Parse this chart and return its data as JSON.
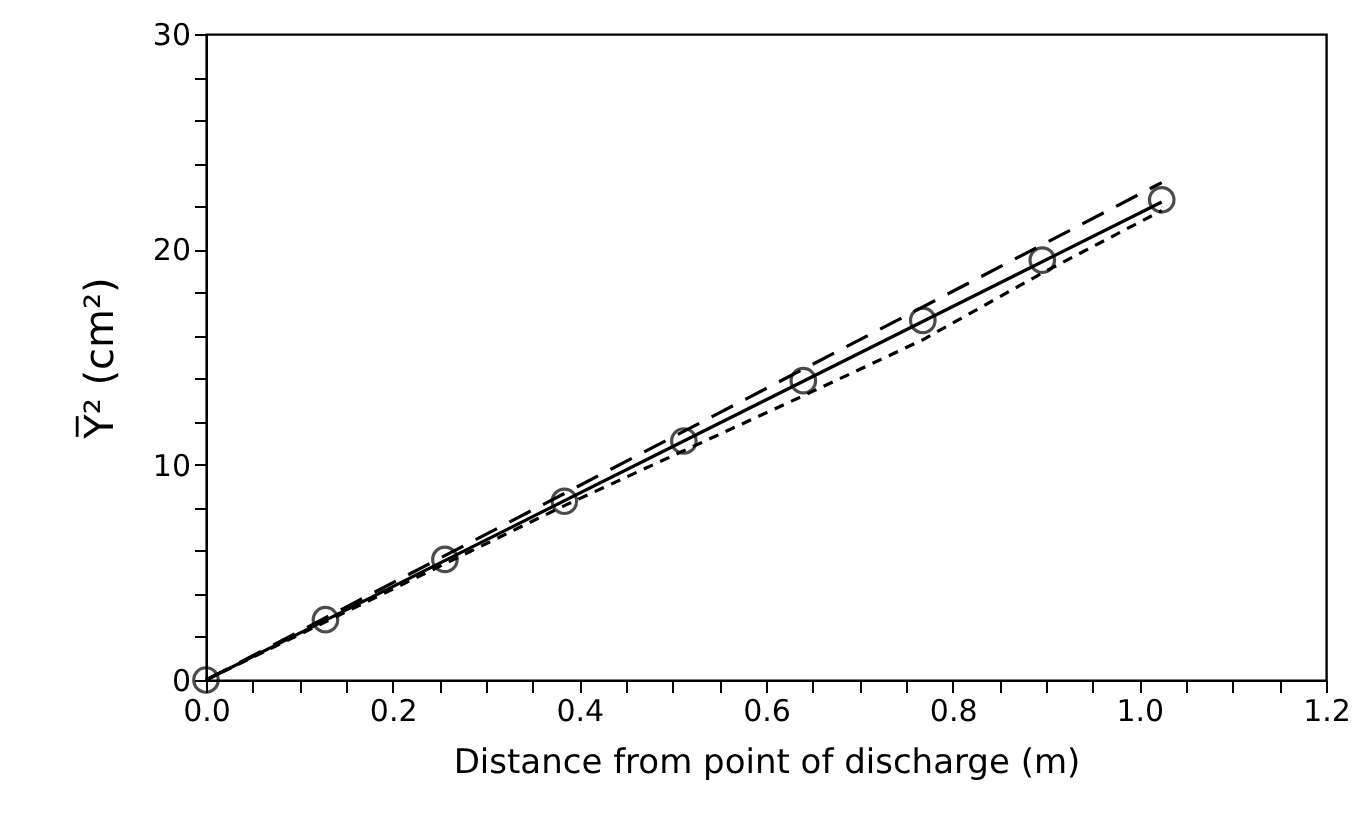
{
  "chart_data": {
    "type": "scatter",
    "xlabel": "Distance from point of discharge (m)",
    "ylabel": "Y̅²  (cm²)",
    "xlim": [
      0,
      1.2
    ],
    "ylim": [
      0,
      30
    ],
    "xticks": [
      {
        "value": 0,
        "label": "0.0"
      },
      {
        "value": 0.2,
        "label": "0.2"
      },
      {
        "value": 0.4,
        "label": "0.4"
      },
      {
        "value": 0.6,
        "label": "0.6"
      },
      {
        "value": 0.8,
        "label": "0.8"
      },
      {
        "value": 1,
        "label": "1.0"
      },
      {
        "value": 1.2,
        "label": "1.2"
      },
      {
        "value": 0.05,
        "label": null
      },
      {
        "value": 0.1,
        "label": null
      },
      {
        "value": 0.15,
        "label": null
      },
      {
        "value": 0.25,
        "label": null
      },
      {
        "value": 0.3,
        "label": null
      },
      {
        "value": 0.35,
        "label": null
      },
      {
        "value": 0.45,
        "label": null
      },
      {
        "value": 0.5,
        "label": null
      },
      {
        "value": 0.55,
        "label": null
      },
      {
        "value": 0.65,
        "label": null
      },
      {
        "value": 0.7,
        "label": null
      },
      {
        "value": 0.75,
        "label": null
      },
      {
        "value": 0.85,
        "label": null
      },
      {
        "value": 0.9,
        "label": null
      },
      {
        "value": 0.95,
        "label": null
      },
      {
        "value": 1.05,
        "label": null
      },
      {
        "value": 1.1,
        "label": null
      },
      {
        "value": 1.15,
        "label": null
      }
    ],
    "yticks": [
      0,
      10,
      20,
      30,
      {
        "value": 2,
        "label": null
      },
      {
        "value": 4,
        "label": null
      },
      {
        "value": 6,
        "label": null
      },
      {
        "value": 8,
        "label": null
      },
      {
        "value": 12,
        "label": null
      },
      {
        "value": 14,
        "label": null
      },
      {
        "value": 16,
        "label": null
      },
      {
        "value": 18,
        "label": null
      },
      {
        "value": 22,
        "label": null
      },
      {
        "value": 24,
        "label": null
      },
      {
        "value": 26,
        "label": null
      },
      {
        "value": 28,
        "label": null
      }
    ],
    "series": [
      {
        "type": "line",
        "color": "#000000",
        "line_style": "solid",
        "marker": "none",
        "x": [
          0,
          1.024
        ],
        "values": [
          0,
          22.2
        ]
      },
      {
        "type": "line",
        "color": "#000000",
        "line_style": "dashed",
        "marker": "none",
        "x": [
          0,
          1.024
        ],
        "values": [
          0,
          23.1
        ]
      },
      {
        "type": "line",
        "color": "#000000",
        "line_style": "dotted",
        "marker": "none",
        "x": [
          0,
          0.384,
          0.64,
          0.768,
          0.896,
          1.024
        ],
        "values": [
          0,
          8.1,
          13.2,
          15.8,
          18.9,
          21.8
        ]
      },
      {
        "type": "scatter",
        "color": "#000000",
        "marker": "circle",
        "x": [
          0,
          0.128,
          0.256,
          0.384,
          0.512,
          0.64,
          0.768,
          0.896,
          1.024
        ],
        "values": [
          0,
          2.8,
          5.6,
          8.3,
          11.1,
          13.9,
          16.7,
          19.5,
          22.3
        ]
      }
    ]
  }
}
